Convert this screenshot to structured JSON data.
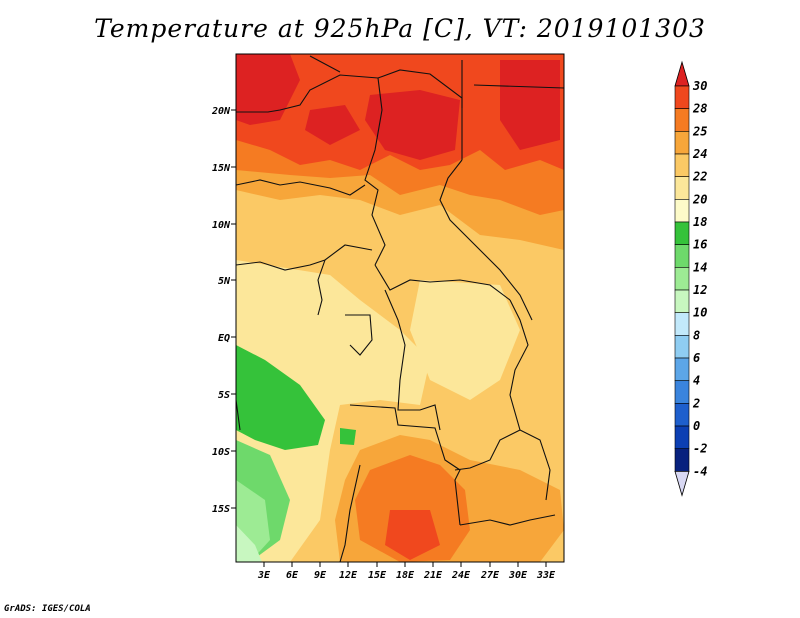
{
  "title": "Temperature at 925hPa [C], VT: 2019101303",
  "footer": "GrADS: IGES/COLA",
  "map": {
    "lat_labels": [
      "20N",
      "15N",
      "10N",
      "5N",
      "EQ",
      "5S",
      "10S",
      "15S"
    ],
    "lon_labels": [
      "3E",
      "6E",
      "9E",
      "12E",
      "15E",
      "18E",
      "21E",
      "24E",
      "27E",
      "30E",
      "33E"
    ]
  },
  "legend": {
    "labels": [
      "30",
      "28",
      "25",
      "24",
      "22",
      "20",
      "18",
      "16",
      "14",
      "12",
      "10",
      "8",
      "6",
      "4",
      "2",
      "0",
      "-2",
      "-4"
    ],
    "colors": [
      "#dd2222",
      "#f0481e",
      "#f57b22",
      "#f7a63a",
      "#fbc965",
      "#fce79a",
      "#fdfbc9",
      "#35c23a",
      "#6ed96b",
      "#9deb94",
      "#c8f7c0",
      "#c2e9fb",
      "#8fcdf2",
      "#5ca6e8",
      "#3a84dd",
      "#1e5fcd",
      "#0c3fb3",
      "#08217e",
      "#d8d8f3"
    ]
  }
}
